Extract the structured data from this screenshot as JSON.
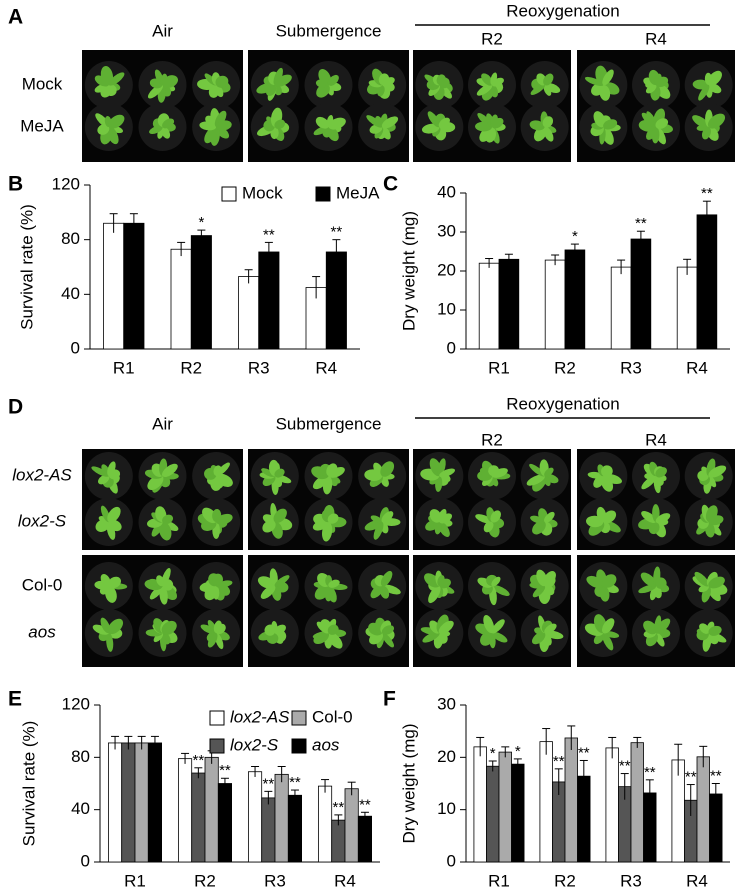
{
  "panels": [
    {
      "panel_label": "A",
      "columns": [
        "Air",
        "Submergence"
      ],
      "group": "Reoxygenation",
      "subcolumns": [
        "R2",
        "R4"
      ],
      "rows": [
        {
          "label": "Mock",
          "italic": false
        },
        {
          "label": "MeJA",
          "italic": false
        }
      ]
    },
    {
      "panel_label": "D",
      "columns": [
        "Air",
        "Submergence"
      ],
      "group": "Reoxygenation",
      "subcolumns": [
        "R2",
        "R4"
      ],
      "rows": [
        {
          "label": "lox2-AS",
          "italic": true
        },
        {
          "label": "lox2-S",
          "italic": true
        },
        {
          "label": "Col-0",
          "italic": false
        },
        {
          "label": "aos",
          "italic": true
        }
      ]
    }
  ],
  "chart_data": [
    {
      "type": "bar",
      "panel_label": "B",
      "y_label": "Survival rate (%)",
      "categories": [
        "R1",
        "R2",
        "R3",
        "R4"
      ],
      "series": [
        {
          "name": "Mock",
          "color": "#ffffff",
          "italic": false,
          "values": [
            92,
            73,
            53,
            45
          ],
          "errors": [
            7,
            5,
            5,
            8
          ],
          "annotations": [
            null,
            null,
            null,
            null
          ]
        },
        {
          "name": "MeJA",
          "color": "#000000",
          "italic": false,
          "values": [
            92,
            83,
            71,
            71
          ],
          "errors": [
            7,
            4,
            7,
            9
          ],
          "annotations": [
            null,
            "*",
            "**",
            "**"
          ]
        }
      ],
      "ylim": [
        0,
        120
      ],
      "yticks": [
        0,
        40,
        80,
        120
      ]
    },
    {
      "type": "bar",
      "panel_label": "C",
      "y_label": "Dry weight (mg)",
      "categories": [
        "R1",
        "R2",
        "R3",
        "R4"
      ],
      "series": [
        {
          "color": "#ffffff",
          "values": [
            22,
            22.8,
            21,
            21
          ],
          "errors": [
            1.2,
            1.3,
            1.8,
            2
          ],
          "annotations": [
            null,
            null,
            null,
            null
          ]
        },
        {
          "color": "#000000",
          "values": [
            23,
            25.4,
            28.2,
            34.4
          ],
          "errors": [
            1.3,
            1.5,
            2,
            3.5
          ],
          "annotations": [
            null,
            "*",
            "**",
            "**"
          ]
        }
      ],
      "ylim": [
        0,
        40
      ],
      "yticks": [
        0,
        10,
        20,
        30,
        40
      ]
    },
    {
      "type": "bar",
      "panel_label": "E",
      "y_label": "Survival rate (%)",
      "categories": [
        "R1",
        "R2",
        "R3",
        "R4"
      ],
      "series": [
        {
          "name": "lox2-AS",
          "color": "#ffffff",
          "italic": true,
          "values": [
            91,
            79,
            69,
            58
          ],
          "errors": [
            5,
            4,
            4,
            5
          ],
          "annotations": [
            null,
            null,
            null,
            null
          ]
        },
        {
          "name": "lox2-S",
          "color": "#555555",
          "italic": true,
          "values": [
            91,
            68,
            49,
            32
          ],
          "errors": [
            5,
            4,
            5,
            4
          ],
          "annotations": [
            null,
            "**",
            "**",
            "**"
          ]
        },
        {
          "name": "Col-0",
          "color": "#aaaaaa",
          "italic": false,
          "values": [
            91,
            80,
            67,
            56
          ],
          "errors": [
            5,
            5,
            6,
            5
          ],
          "annotations": [
            null,
            null,
            null,
            null
          ]
        },
        {
          "name": "aos",
          "color": "#000000",
          "italic": true,
          "values": [
            91,
            60,
            51,
            35
          ],
          "errors": [
            5,
            4,
            4,
            3
          ],
          "annotations": [
            null,
            "**",
            "**",
            "**"
          ]
        }
      ],
      "ylim": [
        0,
        120
      ],
      "yticks": [
        0,
        40,
        80,
        120
      ]
    },
    {
      "type": "bar",
      "panel_label": "F",
      "y_label": "Dry weight (mg)",
      "categories": [
        "R1",
        "R2",
        "R3",
        "R4"
      ],
      "series": [
        {
          "color": "#ffffff",
          "values": [
            22,
            23,
            21.8,
            19.5
          ],
          "errors": [
            1.8,
            2.5,
            2,
            3
          ],
          "annotations": [
            null,
            null,
            null,
            null
          ]
        },
        {
          "color": "#555555",
          "values": [
            18.3,
            15.3,
            14.4,
            11.8
          ],
          "errors": [
            1,
            2.5,
            2.5,
            3
          ],
          "annotations": [
            "*",
            "**",
            "**",
            "**"
          ]
        },
        {
          "color": "#aaaaaa",
          "values": [
            21,
            23.7,
            22.8,
            20.1
          ],
          "errors": [
            1,
            2.3,
            1,
            2
          ],
          "annotations": [
            null,
            null,
            null,
            null
          ]
        },
        {
          "color": "#000000",
          "values": [
            18.7,
            16.4,
            13.2,
            13
          ],
          "errors": [
            1,
            3,
            2.5,
            2
          ],
          "annotations": [
            "*",
            "**",
            "**",
            "**"
          ]
        }
      ],
      "ylim": [
        0,
        30
      ],
      "yticks": [
        0,
        10,
        20,
        30
      ]
    }
  ]
}
